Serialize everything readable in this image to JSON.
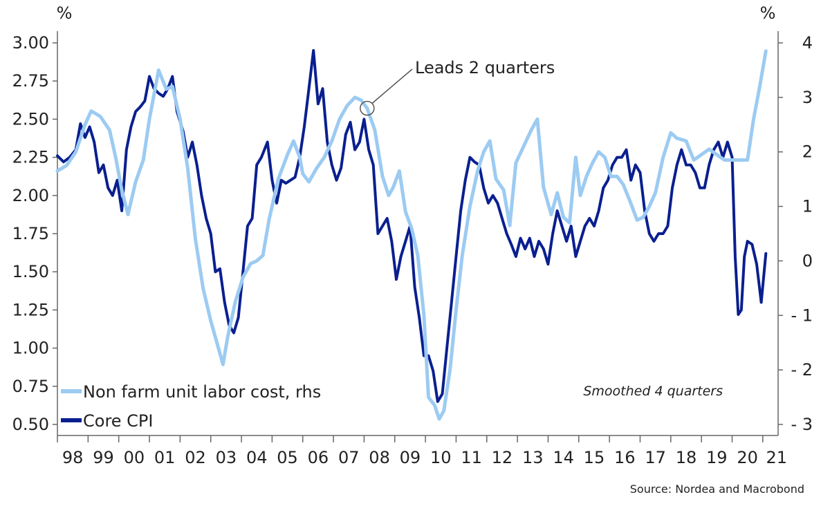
{
  "chart_data": {
    "type": "line",
    "x_tick_labels": [
      "98",
      "99",
      "00",
      "01",
      "02",
      "03",
      "04",
      "05",
      "06",
      "07",
      "08",
      "09",
      "10",
      "11",
      "12",
      "13",
      "14",
      "15",
      "16",
      "17",
      "18",
      "19",
      "20",
      "21"
    ],
    "x_range": [
      1998.0,
      2021.5
    ],
    "left_axis": {
      "unit": "%",
      "ylim": [
        0.5,
        3.0
      ],
      "ticks": [
        "3.00",
        "2.75",
        "2.50",
        "2.25",
        "2.00",
        "1.75",
        "1.50",
        "1.25",
        "1.00",
        "0.75",
        "0.50"
      ]
    },
    "right_axis": {
      "unit": "%",
      "ylim": [
        -3,
        4
      ],
      "ticks": [
        "4",
        "3",
        "2",
        "1",
        "0",
        "-1",
        "-2",
        "-3"
      ]
    },
    "series": [
      {
        "name": "Core CPI",
        "axis": "left",
        "color": "#0a1f8f",
        "points": [
          [
            1998.0,
            2.26
          ],
          [
            1998.2,
            2.22
          ],
          [
            1998.4,
            2.25
          ],
          [
            1998.6,
            2.3
          ],
          [
            1998.75,
            2.47
          ],
          [
            1998.9,
            2.38
          ],
          [
            1999.05,
            2.45
          ],
          [
            1999.2,
            2.35
          ],
          [
            1999.35,
            2.15
          ],
          [
            1999.5,
            2.2
          ],
          [
            1999.65,
            2.05
          ],
          [
            1999.8,
            2.0
          ],
          [
            1999.95,
            2.1
          ],
          [
            2000.1,
            1.9
          ],
          [
            2000.25,
            2.3
          ],
          [
            2000.4,
            2.45
          ],
          [
            2000.55,
            2.55
          ],
          [
            2000.7,
            2.58
          ],
          [
            2000.85,
            2.62
          ],
          [
            2001.0,
            2.78
          ],
          [
            2001.15,
            2.7
          ],
          [
            2001.3,
            2.67
          ],
          [
            2001.45,
            2.65
          ],
          [
            2001.6,
            2.7
          ],
          [
            2001.75,
            2.78
          ],
          [
            2001.9,
            2.55
          ],
          [
            2002.1,
            2.42
          ],
          [
            2002.25,
            2.25
          ],
          [
            2002.4,
            2.35
          ],
          [
            2002.55,
            2.2
          ],
          [
            2002.7,
            2.0
          ],
          [
            2002.85,
            1.85
          ],
          [
            2003.0,
            1.75
          ],
          [
            2003.15,
            1.5
          ],
          [
            2003.3,
            1.52
          ],
          [
            2003.45,
            1.3
          ],
          [
            2003.6,
            1.15
          ],
          [
            2003.75,
            1.1
          ],
          [
            2003.9,
            1.2
          ],
          [
            2004.05,
            1.5
          ],
          [
            2004.2,
            1.8
          ],
          [
            2004.35,
            1.85
          ],
          [
            2004.5,
            2.2
          ],
          [
            2004.65,
            2.25
          ],
          [
            2004.85,
            2.35
          ],
          [
            2005.0,
            2.1
          ],
          [
            2005.15,
            1.95
          ],
          [
            2005.3,
            2.1
          ],
          [
            2005.45,
            2.08
          ],
          [
            2005.6,
            2.1
          ],
          [
            2005.75,
            2.12
          ],
          [
            2005.9,
            2.25
          ],
          [
            2006.05,
            2.45
          ],
          [
            2006.2,
            2.7
          ],
          [
            2006.35,
            2.95
          ],
          [
            2006.5,
            2.6
          ],
          [
            2006.65,
            2.7
          ],
          [
            2006.8,
            2.35
          ],
          [
            2006.95,
            2.2
          ],
          [
            2007.1,
            2.1
          ],
          [
            2007.25,
            2.18
          ],
          [
            2007.4,
            2.4
          ],
          [
            2007.55,
            2.48
          ],
          [
            2007.7,
            2.3
          ],
          [
            2007.85,
            2.35
          ],
          [
            2008.0,
            2.5
          ],
          [
            2008.15,
            2.3
          ],
          [
            2008.3,
            2.2
          ],
          [
            2008.45,
            1.75
          ],
          [
            2008.6,
            1.8
          ],
          [
            2008.75,
            1.85
          ],
          [
            2008.9,
            1.7
          ],
          [
            2009.05,
            1.45
          ],
          [
            2009.2,
            1.6
          ],
          [
            2009.35,
            1.7
          ],
          [
            2009.5,
            1.8
          ],
          [
            2009.65,
            1.4
          ],
          [
            2009.8,
            1.2
          ],
          [
            2009.95,
            0.95
          ],
          [
            2010.1,
            0.95
          ],
          [
            2010.25,
            0.85
          ],
          [
            2010.4,
            0.65
          ],
          [
            2010.55,
            0.7
          ],
          [
            2010.7,
            1.0
          ],
          [
            2010.85,
            1.3
          ],
          [
            2011.0,
            1.6
          ],
          [
            2011.15,
            1.9
          ],
          [
            2011.3,
            2.1
          ],
          [
            2011.45,
            2.25
          ],
          [
            2011.6,
            2.22
          ],
          [
            2011.75,
            2.2
          ],
          [
            2011.9,
            2.05
          ],
          [
            2012.05,
            1.95
          ],
          [
            2012.2,
            2.0
          ],
          [
            2012.35,
            1.95
          ],
          [
            2012.5,
            1.85
          ],
          [
            2012.65,
            1.75
          ],
          [
            2012.8,
            1.68
          ],
          [
            2012.95,
            1.6
          ],
          [
            2013.1,
            1.72
          ],
          [
            2013.25,
            1.65
          ],
          [
            2013.4,
            1.72
          ],
          [
            2013.55,
            1.6
          ],
          [
            2013.7,
            1.7
          ],
          [
            2013.85,
            1.65
          ],
          [
            2014.0,
            1.55
          ],
          [
            2014.15,
            1.75
          ],
          [
            2014.3,
            1.9
          ],
          [
            2014.45,
            1.8
          ],
          [
            2014.6,
            1.7
          ],
          [
            2014.75,
            1.8
          ],
          [
            2014.9,
            1.6
          ],
          [
            2015.05,
            1.7
          ],
          [
            2015.2,
            1.8
          ],
          [
            2015.35,
            1.85
          ],
          [
            2015.5,
            1.8
          ],
          [
            2015.65,
            1.9
          ],
          [
            2015.8,
            2.05
          ],
          [
            2015.95,
            2.1
          ],
          [
            2016.1,
            2.2
          ],
          [
            2016.25,
            2.25
          ],
          [
            2016.4,
            2.25
          ],
          [
            2016.55,
            2.3
          ],
          [
            2016.7,
            2.1
          ],
          [
            2016.85,
            2.2
          ],
          [
            2017.0,
            2.15
          ],
          [
            2017.15,
            1.9
          ],
          [
            2017.3,
            1.75
          ],
          [
            2017.45,
            1.7
          ],
          [
            2017.6,
            1.75
          ],
          [
            2017.75,
            1.75
          ],
          [
            2017.9,
            1.8
          ],
          [
            2018.05,
            2.05
          ],
          [
            2018.2,
            2.2
          ],
          [
            2018.35,
            2.3
          ],
          [
            2018.5,
            2.2
          ],
          [
            2018.65,
            2.2
          ],
          [
            2018.8,
            2.15
          ],
          [
            2018.95,
            2.05
          ],
          [
            2019.1,
            2.05
          ],
          [
            2019.25,
            2.2
          ],
          [
            2019.4,
            2.3
          ],
          [
            2019.55,
            2.35
          ],
          [
            2019.7,
            2.25
          ],
          [
            2019.85,
            2.35
          ],
          [
            2020.0,
            2.25
          ],
          [
            2020.1,
            1.6
          ],
          [
            2020.2,
            1.22
          ],
          [
            2020.3,
            1.25
          ],
          [
            2020.4,
            1.6
          ],
          [
            2020.5,
            1.7
          ],
          [
            2020.65,
            1.68
          ],
          [
            2020.8,
            1.55
          ],
          [
            2020.95,
            1.3
          ],
          [
            2021.1,
            1.62
          ]
        ]
      },
      {
        "name": "Non farm unit labor cost, rhs",
        "axis": "right",
        "color": "#9ccbf2",
        "points": [
          [
            1998.0,
            1.65
          ],
          [
            1998.3,
            1.75
          ],
          [
            1998.6,
            2.0
          ],
          [
            1998.9,
            2.5
          ],
          [
            1999.1,
            2.75
          ],
          [
            1999.4,
            2.65
          ],
          [
            1999.7,
            2.4
          ],
          [
            1999.9,
            1.9
          ],
          [
            2000.1,
            1.3
          ],
          [
            2000.3,
            0.85
          ],
          [
            2000.55,
            1.45
          ],
          [
            2000.8,
            1.85
          ],
          [
            2001.0,
            2.6
          ],
          [
            2001.3,
            3.5
          ],
          [
            2001.55,
            3.15
          ],
          [
            2001.75,
            3.2
          ],
          [
            2002.0,
            2.6
          ],
          [
            2002.25,
            1.7
          ],
          [
            2002.5,
            0.4
          ],
          [
            2002.75,
            -0.5
          ],
          [
            2003.0,
            -1.1
          ],
          [
            2003.2,
            -1.5
          ],
          [
            2003.4,
            -1.9
          ],
          [
            2003.55,
            -1.4
          ],
          [
            2003.8,
            -0.75
          ],
          [
            2004.05,
            -0.3
          ],
          [
            2004.3,
            -0.05
          ],
          [
            2004.5,
            0.0
          ],
          [
            2004.7,
            0.1
          ],
          [
            2004.9,
            0.75
          ],
          [
            2005.2,
            1.5
          ],
          [
            2005.5,
            1.95
          ],
          [
            2005.7,
            2.2
          ],
          [
            2005.9,
            1.9
          ],
          [
            2006.0,
            1.6
          ],
          [
            2006.2,
            1.45
          ],
          [
            2006.45,
            1.7
          ],
          [
            2006.7,
            1.9
          ],
          [
            2006.95,
            2.2
          ],
          [
            2007.2,
            2.6
          ],
          [
            2007.45,
            2.85
          ],
          [
            2007.7,
            3.0
          ],
          [
            2007.9,
            2.95
          ],
          [
            2008.1,
            2.8
          ],
          [
            2008.35,
            2.4
          ],
          [
            2008.6,
            1.55
          ],
          [
            2008.8,
            1.2
          ],
          [
            2008.95,
            1.35
          ],
          [
            2009.15,
            1.65
          ],
          [
            2009.35,
            0.9
          ],
          [
            2009.55,
            0.6
          ],
          [
            2009.75,
            0.1
          ],
          [
            2009.95,
            -1.0
          ],
          [
            2010.1,
            -2.5
          ],
          [
            2010.3,
            -2.65
          ],
          [
            2010.45,
            -2.9
          ],
          [
            2010.6,
            -2.75
          ],
          [
            2010.8,
            -2.0
          ],
          [
            2011.0,
            -0.9
          ],
          [
            2011.2,
            0.1
          ],
          [
            2011.45,
            1.0
          ],
          [
            2011.7,
            1.65
          ],
          [
            2011.9,
            2.0
          ],
          [
            2012.1,
            2.2
          ],
          [
            2012.3,
            1.5
          ],
          [
            2012.55,
            1.3
          ],
          [
            2012.75,
            0.65
          ],
          [
            2012.95,
            1.8
          ],
          [
            2013.2,
            2.1
          ],
          [
            2013.45,
            2.4
          ],
          [
            2013.65,
            2.6
          ],
          [
            2013.85,
            1.35
          ],
          [
            2014.1,
            0.85
          ],
          [
            2014.3,
            1.25
          ],
          [
            2014.5,
            0.8
          ],
          [
            2014.7,
            0.7
          ],
          [
            2014.9,
            1.9
          ],
          [
            2015.05,
            1.2
          ],
          [
            2015.25,
            1.55
          ],
          [
            2015.45,
            1.8
          ],
          [
            2015.65,
            2.0
          ],
          [
            2015.85,
            1.9
          ],
          [
            2016.05,
            1.55
          ],
          [
            2016.25,
            1.55
          ],
          [
            2016.45,
            1.4
          ],
          [
            2016.7,
            1.05
          ],
          [
            2016.9,
            0.75
          ],
          [
            2017.1,
            0.8
          ],
          [
            2017.3,
            1.0
          ],
          [
            2017.5,
            1.25
          ],
          [
            2017.75,
            1.9
          ],
          [
            2018.0,
            2.35
          ],
          [
            2018.2,
            2.25
          ],
          [
            2018.5,
            2.2
          ],
          [
            2018.75,
            1.85
          ],
          [
            2019.0,
            1.95
          ],
          [
            2019.25,
            2.05
          ],
          [
            2019.5,
            1.95
          ],
          [
            2019.75,
            1.85
          ],
          [
            2020.0,
            1.85
          ],
          [
            2020.25,
            1.85
          ],
          [
            2020.5,
            1.85
          ],
          [
            2020.7,
            2.6
          ],
          [
            2020.9,
            3.2
          ],
          [
            2021.1,
            3.85
          ]
        ]
      }
    ],
    "legend": [
      {
        "label": "Non farm unit labor cost, rhs",
        "color": "#9ccbf2"
      },
      {
        "label": "Core CPI",
        "color": "#0a1f8f"
      }
    ],
    "legend_position": "bottom-left",
    "annotation": {
      "text": "Leads 2 quarters",
      "at": [
        2008.1,
        2.8
      ],
      "axis": "right"
    },
    "note": "Smoothed 4 quarters",
    "source": "Source: Nordea and Macrobond",
    "grid": false
  }
}
